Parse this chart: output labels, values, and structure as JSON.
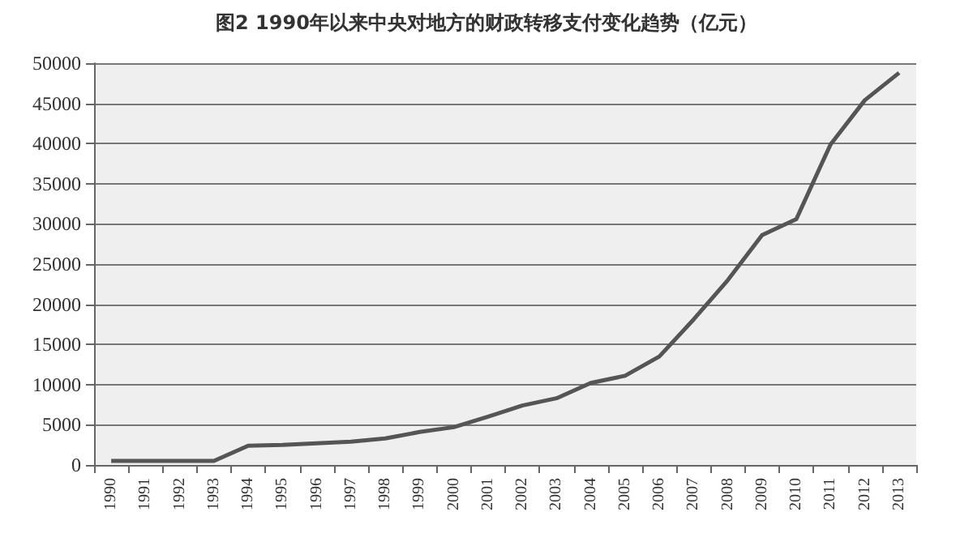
{
  "chart_data": {
    "type": "line",
    "title": "图2  1990年以来中央对地方的财政转移支付变化趋势（亿元）",
    "categories": [
      "1990",
      "1991",
      "1992",
      "1993",
      "1994",
      "1995",
      "1996",
      "1997",
      "1998",
      "1999",
      "2000",
      "2001",
      "2002",
      "2003",
      "2004",
      "2005",
      "2006",
      "2007",
      "2008",
      "2009",
      "2010",
      "2011",
      "2012",
      "2013"
    ],
    "series": [
      {
        "color": "#555555",
        "values": [
          500,
          500,
          500,
          500,
          2400,
          2500,
          2700,
          2900,
          3300,
          4100,
          4700,
          6000,
          7400,
          8300,
          10200,
          11100,
          13500,
          18100,
          23000,
          28600,
          30600,
          39900,
          45400,
          48800
        ]
      }
    ],
    "ylim": [
      0,
      50000
    ],
    "yticks": [
      0,
      5000,
      10000,
      15000,
      20000,
      25000,
      30000,
      35000,
      40000,
      45000,
      50000
    ],
    "grid": "y",
    "marker": "none",
    "line_style": "solid"
  }
}
